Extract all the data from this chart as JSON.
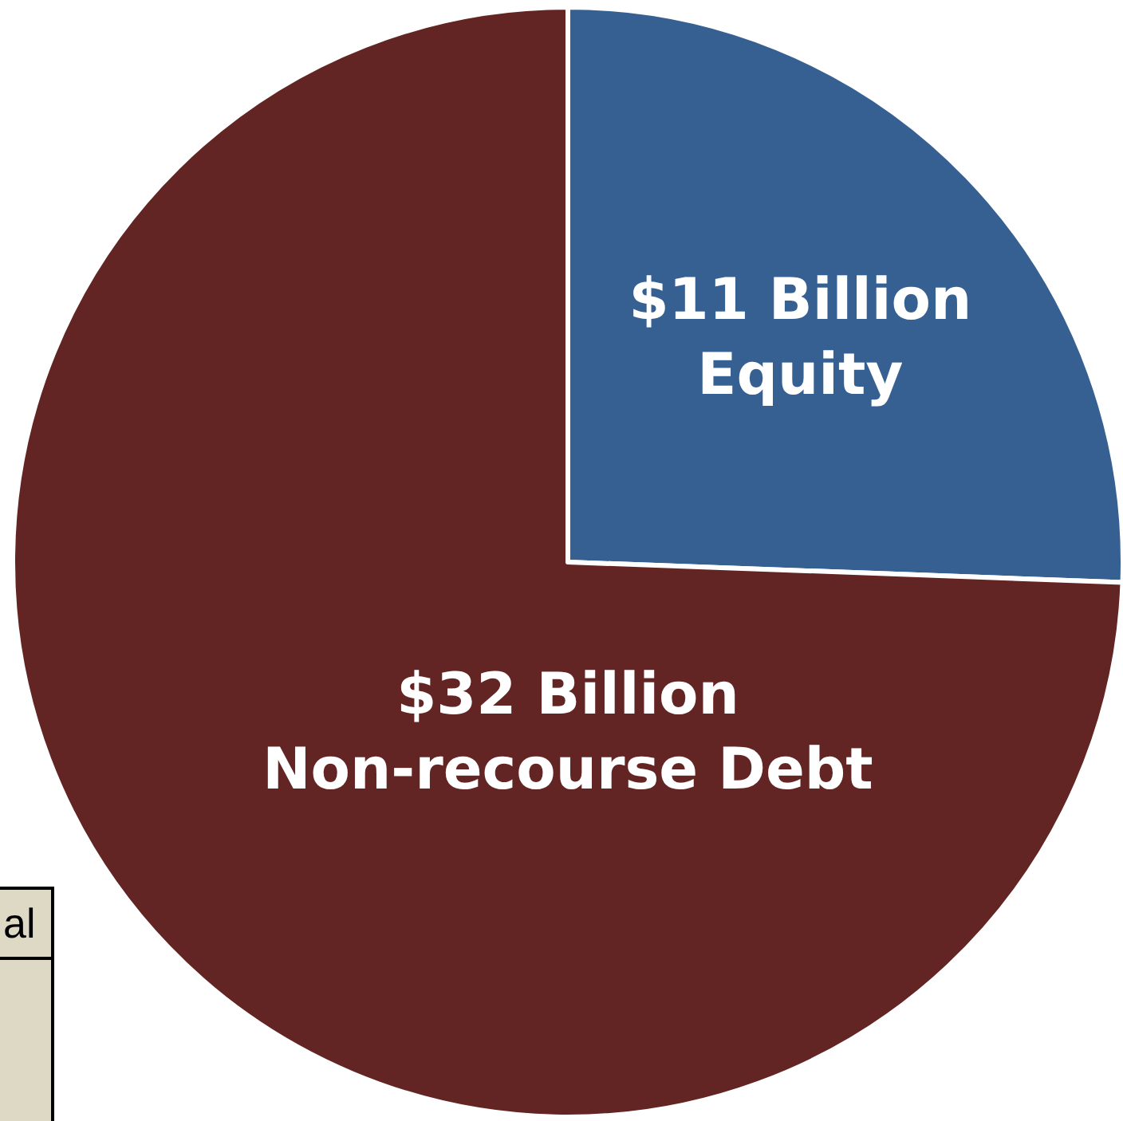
{
  "chart_data": {
    "type": "pie",
    "categories": [
      "Equity",
      "Non-recourse Debt"
    ],
    "values": [
      11,
      32
    ],
    "value_labels": [
      "$11 Billion",
      "$32 Billion"
    ],
    "colors": [
      "#376092",
      "#632523"
    ],
    "legend": false,
    "annotations": [
      "al"
    ]
  }
}
